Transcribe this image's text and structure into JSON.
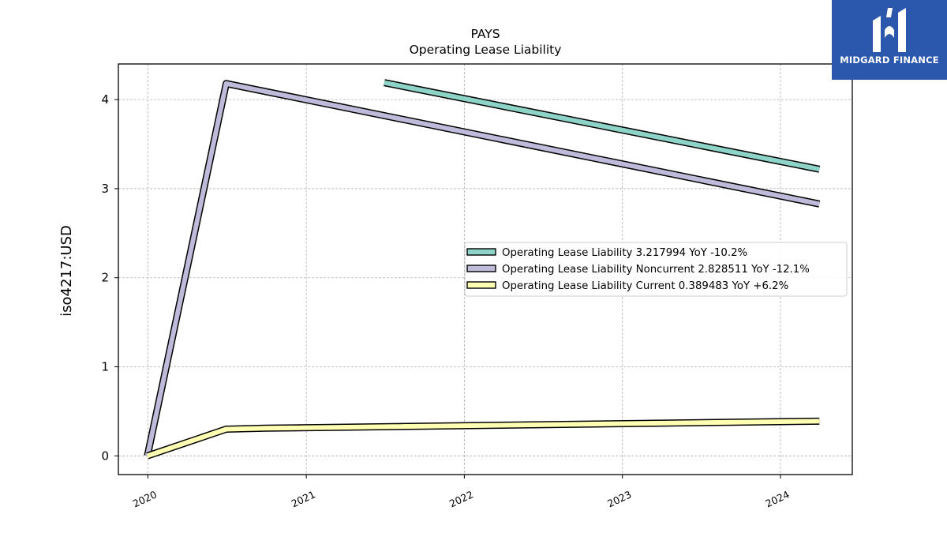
{
  "title": "PAYS",
  "subtitle": "Operating Lease Liability",
  "logo": {
    "text": "MIDGARD FINANCE"
  },
  "chart_data": {
    "type": "line",
    "ylabel": "iso4217:USD",
    "xlabel": "",
    "xlim": [
      "2019-10-25",
      "2024-06-15"
    ],
    "ylim": [
      -0.21,
      4.4
    ],
    "x_ticks": [
      "2020",
      "2021",
      "2022",
      "2023",
      "2024"
    ],
    "y_ticks": [
      "0",
      "1",
      "2",
      "3",
      "4"
    ],
    "grid": true,
    "legend_position": "center-right",
    "series": [
      {
        "name": "Operating Lease Liability",
        "legend_label": "Operating Lease Liability  3.217994 YoY -10.2%",
        "color": "#8dd3c7",
        "points": [
          [
            "2021-06-30",
            4.19
          ],
          [
            "2024-03-31",
            3.217994
          ]
        ]
      },
      {
        "name": "Operating Lease Liability Noncurrent",
        "legend_label": "Operating Lease Liability Noncurrent  2.828511 YoY -12.1%",
        "color": "#bebada",
        "points": [
          [
            "2019-12-31",
            0.0
          ],
          [
            "2020-06-30",
            4.18
          ],
          [
            "2024-03-31",
            2.828511
          ]
        ]
      },
      {
        "name": "Operating Lease Liability Current",
        "legend_label": "Operating Lease Liability Current  0.389483 YoY +6.2%",
        "color": "#ffffb3",
        "points": [
          [
            "2019-12-31",
            0.0
          ],
          [
            "2020-06-30",
            0.3
          ],
          [
            "2020-09-30",
            0.31
          ],
          [
            "2024-03-31",
            0.389483
          ]
        ]
      }
    ]
  }
}
